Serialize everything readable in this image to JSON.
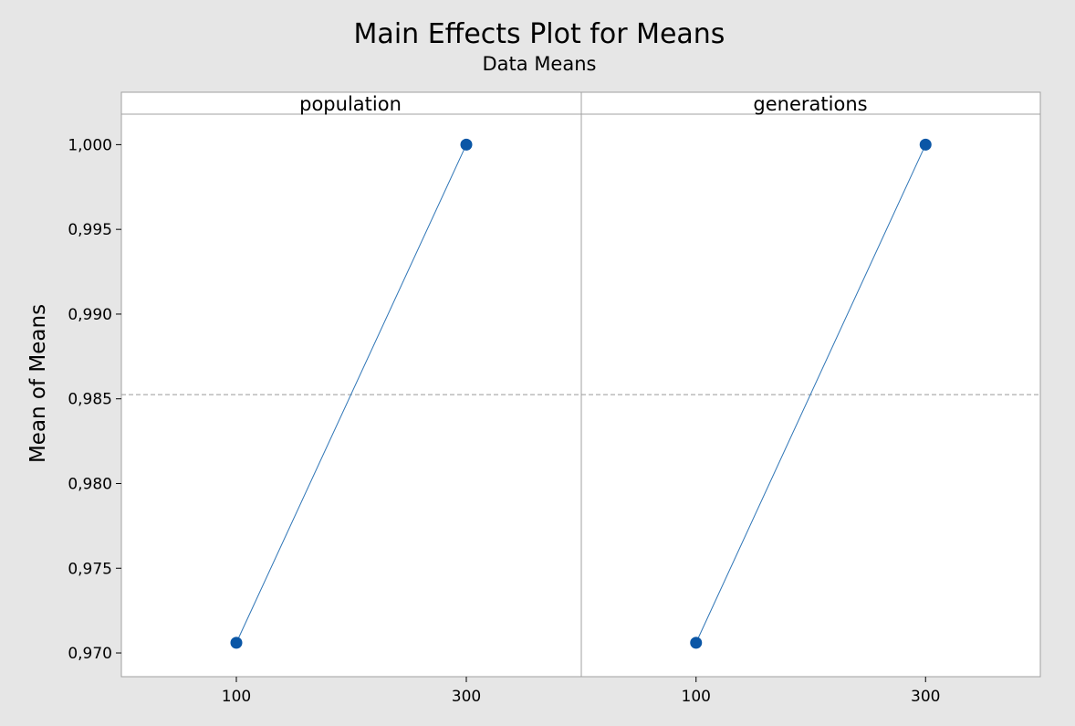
{
  "chart_data": {
    "type": "line",
    "title": "Main Effects Plot for Means",
    "subtitle": "Data Means",
    "ylabel": "Mean of Means",
    "ylim": [
      0.9686,
      1.0018
    ],
    "yticks": [
      0.97,
      0.975,
      0.98,
      0.985,
      0.99,
      0.995,
      1.0
    ],
    "ytick_labels": [
      "0,970",
      "0,975",
      "0,980",
      "0,985",
      "0,990",
      "0,995",
      "1,000"
    ],
    "grand_mean": 0.98525,
    "marker_color": "#0a56a6",
    "line_color": "#2e75b6",
    "mean_line_color": "#9a9a9a",
    "panels": [
      {
        "name": "population",
        "categories": [
          "100",
          "300"
        ],
        "values": [
          0.9706,
          1.0
        ]
      },
      {
        "name": "generations",
        "categories": [
          "100",
          "300"
        ],
        "values": [
          0.9706,
          1.0
        ]
      }
    ]
  }
}
